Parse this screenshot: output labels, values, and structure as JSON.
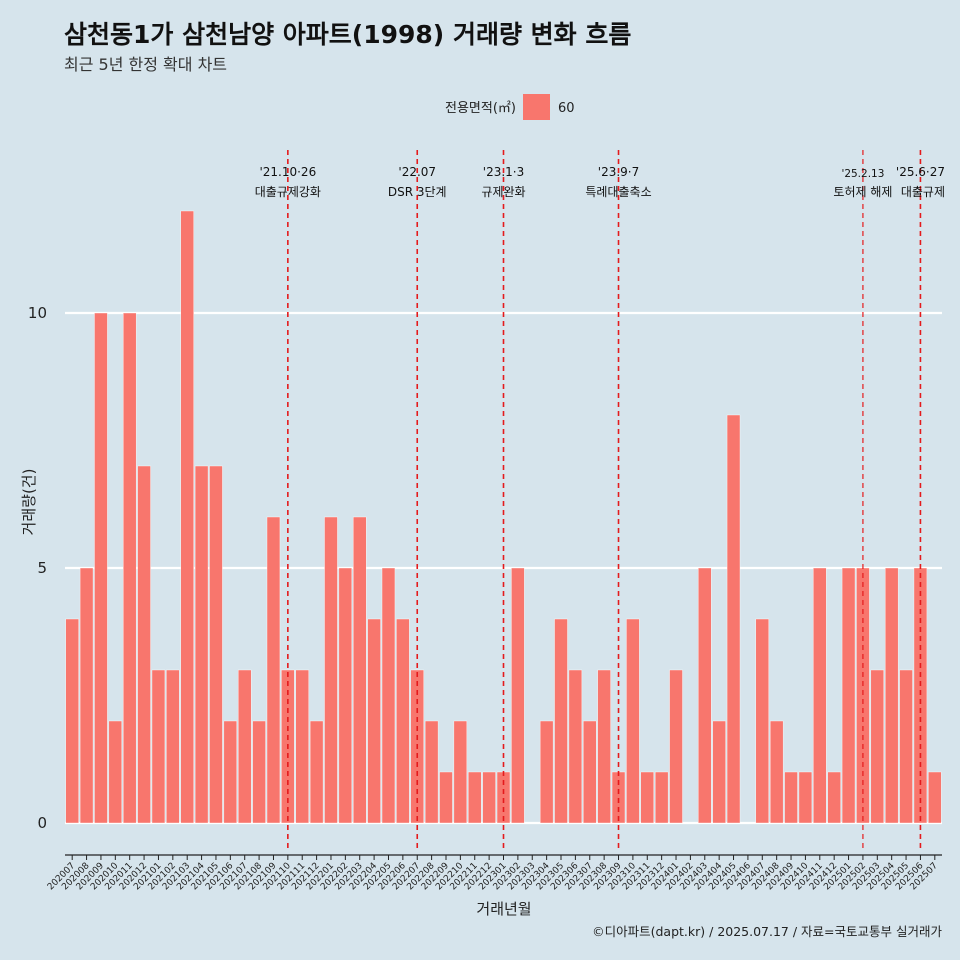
{
  "chart_data": {
    "type": "bar",
    "title": "삼천동1가 삼천남양 아파트(1998) 거래량 변화 흐름",
    "subtitle": "최근 5년 한정 확대 차트",
    "xlabel": "거래년월",
    "ylabel": "거래량(건)",
    "ylim": [
      0,
      12.6
    ],
    "yticks": [
      0,
      5,
      10
    ],
    "grid": true,
    "legend": {
      "title": "전용면적(㎡)",
      "placement": "top-center",
      "entries": [
        "60"
      ]
    },
    "series": [
      {
        "name": "60",
        "color": "#f8766d",
        "values": [
          4,
          5,
          10,
          2,
          10,
          7,
          3,
          3,
          12,
          7,
          7,
          2,
          3,
          2,
          6,
          3,
          3,
          2,
          6,
          5,
          6,
          4,
          5,
          4,
          3,
          2,
          1,
          2,
          1,
          1,
          1,
          5,
          0,
          2,
          4,
          3,
          2,
          3,
          1,
          4,
          1,
          1,
          3,
          0,
          5,
          2,
          8,
          0,
          4,
          2,
          1,
          1,
          5,
          1,
          5,
          5,
          3,
          5,
          3,
          5,
          1
        ]
      }
    ],
    "categories": [
      "202007",
      "202008",
      "202009",
      "202010",
      "202011",
      "202012",
      "202101",
      "202102",
      "202103",
      "202104",
      "202105",
      "202106",
      "202107",
      "202108",
      "202109",
      "202110",
      "202111",
      "202112",
      "202201",
      "202202",
      "202203",
      "202204",
      "202205",
      "202206",
      "202207",
      "202208",
      "202209",
      "202210",
      "202211",
      "202212",
      "202301",
      "202302",
      "202303",
      "202304",
      "202305",
      "202306",
      "202307",
      "202308",
      "202309",
      "202310",
      "202311",
      "202312",
      "202401",
      "202402",
      "202403",
      "202404",
      "202405",
      "202406",
      "202407",
      "202408",
      "202409",
      "202410",
      "202411",
      "202412",
      "202501",
      "202502",
      "202503",
      "202504",
      "202505",
      "202506",
      "202507"
    ],
    "annotations": [
      {
        "x": "202110",
        "date": "'21.10·26",
        "label": "대출규제강화"
      },
      {
        "x": "202207",
        "date": "'22.07",
        "label": "DSR 3단계"
      },
      {
        "x": "202301",
        "date": "'23.1·3",
        "label": "규제완화"
      },
      {
        "x": "202309",
        "date": "'23.9·7",
        "label": "특례대출축소"
      },
      {
        "x": "202502",
        "date": "'25.2.13",
        "label": "토허제 해제"
      },
      {
        "x": "202506",
        "date": "'25.6·27",
        "label": "대출규제"
      }
    ]
  },
  "caption": "©디아파트(dapt.kr) / 2025.07.17 / 자료=국토교통부 실거래가",
  "colors": {
    "background": "#d6e4ec",
    "bar": "#f8766d",
    "annotation_line": "#e41a1c",
    "grid": "#ffffff"
  }
}
